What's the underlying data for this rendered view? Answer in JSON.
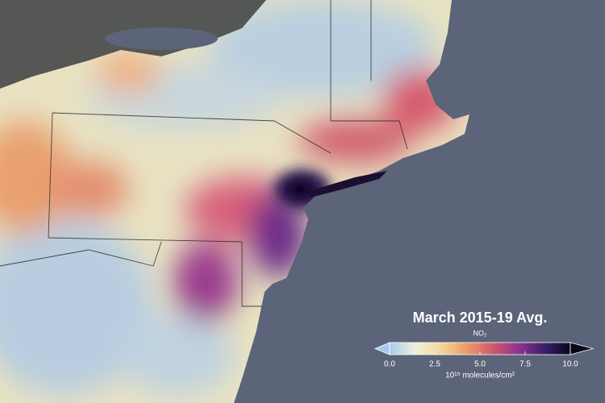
{
  "map": {
    "title": "March 2015-19 Avg.",
    "colorbar": {
      "label": "NO₂",
      "unit": "10¹⁵ molecules/cm²",
      "lim": [
        0,
        10
      ],
      "ticks": [
        {
          "value": 0,
          "label": "0.0"
        },
        {
          "value": 2.5,
          "label": "2.5"
        },
        {
          "value": 5,
          "label": "5.0"
        },
        {
          "value": 7.5,
          "label": "7.5"
        },
        {
          "value": 10,
          "label": "10.0"
        }
      ],
      "colors": [
        "#a9c9ee",
        "#eef0dc",
        "#f3d79a",
        "#ec9a66",
        "#d2566f",
        "#8e3391",
        "#3c1f68",
        "#07061a"
      ]
    }
  }
}
